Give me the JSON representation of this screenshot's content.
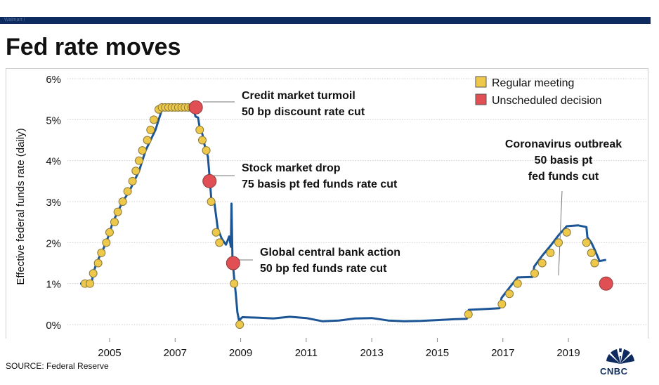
{
  "header": {
    "bar_text": "Walmart /",
    "title": "Fed rate moves"
  },
  "source": "SOURCE: Federal Reserve",
  "logo": {
    "text": "CNBC"
  },
  "colors": {
    "line": "#1b5595",
    "regular": "#edc84a",
    "unscheduled": "#e04f54",
    "header": "#0d2b5e"
  },
  "chart_data": {
    "type": "line",
    "title": "Fed rate moves",
    "xlabel": "",
    "ylabel": "Effective federal funds rate (daily)",
    "xlim": [
      2003.8,
      2021.4
    ],
    "ylim": [
      0,
      6
    ],
    "x_ticks": [
      {
        "value": 2005,
        "label": "2005"
      },
      {
        "value": 2007,
        "label": "2007"
      },
      {
        "value": 2009,
        "label": "2009"
      },
      {
        "value": 2011,
        "label": "2011"
      },
      {
        "value": 2013,
        "label": "2013"
      },
      {
        "value": 2015,
        "label": "2015"
      },
      {
        "value": 2017,
        "label": "2017"
      },
      {
        "value": 2019,
        "label": "2019"
      }
    ],
    "y_ticks": [
      {
        "value": 0,
        "label": "0%"
      },
      {
        "value": 1,
        "label": "1%"
      },
      {
        "value": 2,
        "label": "2%"
      },
      {
        "value": 3,
        "label": "3%"
      },
      {
        "value": 4,
        "label": "4%"
      },
      {
        "value": 5,
        "label": "5%"
      },
      {
        "value": 6,
        "label": "6%"
      }
    ],
    "legend": [
      {
        "key": "regular",
        "label": "Regular meeting"
      },
      {
        "key": "unscheduled",
        "label": "Unscheduled decision"
      }
    ],
    "series": [
      {
        "name": "Effective federal funds rate",
        "points": [
          [
            2004.1,
            1.0
          ],
          [
            2004.45,
            1.0
          ],
          [
            2004.5,
            1.25
          ],
          [
            2004.6,
            1.5
          ],
          [
            2004.75,
            1.75
          ],
          [
            2004.9,
            2.0
          ],
          [
            2005.0,
            2.25
          ],
          [
            2005.1,
            2.5
          ],
          [
            2005.25,
            2.75
          ],
          [
            2005.4,
            3.0
          ],
          [
            2005.6,
            3.25
          ],
          [
            2005.75,
            3.5
          ],
          [
            2005.9,
            3.75
          ],
          [
            2006.0,
            4.0
          ],
          [
            2006.1,
            4.25
          ],
          [
            2006.25,
            4.5
          ],
          [
            2006.4,
            4.75
          ],
          [
            2006.5,
            5.0
          ],
          [
            2006.6,
            5.25
          ],
          [
            2006.7,
            5.3
          ],
          [
            2007.2,
            5.27
          ],
          [
            2007.4,
            5.32
          ],
          [
            2007.55,
            5.3
          ],
          [
            2007.62,
            5.08
          ],
          [
            2007.7,
            5.05
          ],
          [
            2007.75,
            4.8
          ],
          [
            2007.83,
            4.65
          ],
          [
            2007.92,
            4.3
          ],
          [
            2008.0,
            4.1
          ],
          [
            2008.05,
            3.6
          ],
          [
            2008.1,
            3.1
          ],
          [
            2008.2,
            2.95
          ],
          [
            2008.3,
            2.35
          ],
          [
            2008.42,
            2.1
          ],
          [
            2008.55,
            1.95
          ],
          [
            2008.65,
            2.15
          ],
          [
            2008.7,
            1.9
          ],
          [
            2008.72,
            2.95
          ],
          [
            2008.75,
            1.6
          ],
          [
            2008.8,
            1.15
          ],
          [
            2008.85,
            0.75
          ],
          [
            2008.9,
            0.3
          ],
          [
            2008.95,
            0.1
          ],
          [
            2009.05,
            0.18
          ],
          [
            2009.5,
            0.17
          ],
          [
            2010.0,
            0.15
          ],
          [
            2010.5,
            0.19
          ],
          [
            2011.0,
            0.16
          ],
          [
            2011.5,
            0.08
          ],
          [
            2012.0,
            0.1
          ],
          [
            2012.5,
            0.15
          ],
          [
            2013.0,
            0.16
          ],
          [
            2013.5,
            0.1
          ],
          [
            2014.0,
            0.08
          ],
          [
            2014.5,
            0.09
          ],
          [
            2015.0,
            0.11
          ],
          [
            2015.5,
            0.13
          ],
          [
            2015.9,
            0.14
          ],
          [
            2015.96,
            0.36
          ],
          [
            2016.5,
            0.38
          ],
          [
            2016.9,
            0.4
          ],
          [
            2016.96,
            0.65
          ],
          [
            2017.2,
            0.9
          ],
          [
            2017.45,
            1.15
          ],
          [
            2017.9,
            1.16
          ],
          [
            2017.96,
            1.42
          ],
          [
            2018.2,
            1.68
          ],
          [
            2018.45,
            1.92
          ],
          [
            2018.7,
            2.18
          ],
          [
            2018.95,
            2.4
          ],
          [
            2019.3,
            2.42
          ],
          [
            2019.55,
            2.38
          ],
          [
            2019.58,
            2.13
          ],
          [
            2019.7,
            2.0
          ],
          [
            2019.8,
            1.83
          ],
          [
            2019.95,
            1.55
          ],
          [
            2020.15,
            1.58
          ]
        ]
      }
    ],
    "regular_meetings": [
      [
        2004.25,
        1.0
      ],
      [
        2004.4,
        1.0
      ],
      [
        2004.5,
        1.25
      ],
      [
        2004.65,
        1.5
      ],
      [
        2004.75,
        1.75
      ],
      [
        2004.9,
        2.0
      ],
      [
        2005.0,
        2.25
      ],
      [
        2005.15,
        2.5
      ],
      [
        2005.25,
        2.75
      ],
      [
        2005.4,
        3.0
      ],
      [
        2005.55,
        3.25
      ],
      [
        2005.7,
        3.5
      ],
      [
        2005.8,
        3.75
      ],
      [
        2005.9,
        4.0
      ],
      [
        2006.0,
        4.25
      ],
      [
        2006.15,
        4.5
      ],
      [
        2006.25,
        4.75
      ],
      [
        2006.35,
        5.0
      ],
      [
        2006.5,
        5.25
      ],
      [
        2006.6,
        5.3
      ],
      [
        2006.7,
        5.3
      ],
      [
        2006.8,
        5.3
      ],
      [
        2006.9,
        5.3
      ],
      [
        2007.0,
        5.3
      ],
      [
        2007.1,
        5.3
      ],
      [
        2007.2,
        5.3
      ],
      [
        2007.3,
        5.3
      ],
      [
        2007.4,
        5.3
      ],
      [
        2007.5,
        5.3
      ],
      [
        2007.75,
        4.75
      ],
      [
        2007.83,
        4.5
      ],
      [
        2007.95,
        4.25
      ],
      [
        2008.1,
        3.0
      ],
      [
        2008.25,
        2.25
      ],
      [
        2008.35,
        2.0
      ],
      [
        2008.8,
        1.0
      ],
      [
        2008.97,
        0.0
      ],
      [
        2015.95,
        0.25
      ],
      [
        2016.97,
        0.5
      ],
      [
        2017.2,
        0.75
      ],
      [
        2017.45,
        1.0
      ],
      [
        2017.97,
        1.25
      ],
      [
        2018.2,
        1.5
      ],
      [
        2018.45,
        1.75
      ],
      [
        2018.7,
        2.0
      ],
      [
        2018.95,
        2.25
      ],
      [
        2019.55,
        2.0
      ],
      [
        2019.7,
        1.75
      ],
      [
        2019.8,
        1.5
      ]
    ],
    "unscheduled_decisions": [
      [
        2007.63,
        5.3
      ],
      [
        2008.05,
        3.5
      ],
      [
        2008.77,
        1.5
      ],
      [
        2020.15,
        1.0
      ]
    ],
    "annotations": [
      {
        "lines": [
          "Credit market turmoil",
          "50 bp discount rate cut"
        ],
        "anchor": [
          2007.63,
          5.3
        ]
      },
      {
        "lines": [
          "Stock market drop",
          "75 basis pt fed funds rate cut"
        ],
        "anchor": [
          2008.05,
          3.5
        ]
      },
      {
        "lines": [
          "Global central bank action",
          "50 bp fed funds rate cut"
        ],
        "anchor": [
          2008.77,
          1.5
        ]
      },
      {
        "lines": [
          "Coronavirus outbreak",
          "50 basis pt",
          "fed funds cut"
        ],
        "anchor": [
          2020.15,
          1.0
        ]
      }
    ]
  }
}
